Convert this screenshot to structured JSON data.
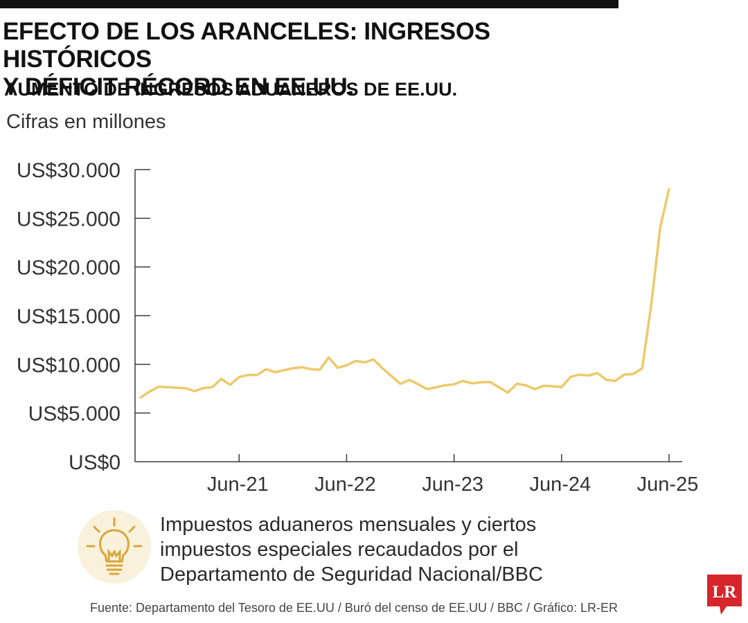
{
  "header": {
    "title_line1": "EFECTO DE LOS ARANCELES: INGRESOS HISTÓRICOS",
    "title_line2": "Y DÉFICIT RÉCORD EN EE.UU.",
    "subtitle": "AUMENTO DE INGRESOS ADUANEROS DE EE.UU.",
    "units": "Cifras en millones"
  },
  "colors": {
    "line": "#ecc96a",
    "axis": "#3a3a3a",
    "icon_bg": "#faf1dc",
    "logo": "#d6262b"
  },
  "chart_data": {
    "type": "line",
    "title": "AUMENTO DE INGRESOS ADUANEROS DE EE.UU.",
    "ylabel": "Cifras en millones",
    "ylim": [
      0,
      30000
    ],
    "xlim": [
      "2020-07",
      "2025-06"
    ],
    "y_ticks": [
      0,
      5000,
      10000,
      15000,
      20000,
      25000,
      30000
    ],
    "y_tick_labels": [
      "US$0",
      "US$5.000",
      "US$10.000",
      "US$15.000",
      "US$20.000",
      "US$25.000",
      "US$30.000"
    ],
    "x_ticks": [
      "2021-06",
      "2022-06",
      "2023-06",
      "2024-06",
      "2025-06"
    ],
    "x_tick_labels": [
      "Jun-21",
      "Jun-22",
      "Jun-23",
      "Jun-24",
      "Jun-25"
    ],
    "grid": false,
    "legend": "none",
    "series": [
      {
        "x": [
          "2020-07",
          "2020-08",
          "2020-09",
          "2020-10",
          "2020-11",
          "2020-12",
          "2021-01",
          "2021-02",
          "2021-03",
          "2021-04",
          "2021-05",
          "2021-06",
          "2021-07",
          "2021-08",
          "2021-09",
          "2021-10",
          "2021-11",
          "2021-12",
          "2022-01",
          "2022-02",
          "2022-03",
          "2022-04",
          "2022-05",
          "2022-06",
          "2022-07",
          "2022-08",
          "2022-09",
          "2022-10",
          "2022-11",
          "2022-12",
          "2023-01",
          "2023-02",
          "2023-03",
          "2023-04",
          "2023-05",
          "2023-06",
          "2023-07",
          "2023-08",
          "2023-09",
          "2023-10",
          "2023-11",
          "2023-12",
          "2024-01",
          "2024-02",
          "2024-03",
          "2024-04",
          "2024-05",
          "2024-06",
          "2024-07",
          "2024-08",
          "2024-09",
          "2024-10",
          "2024-11",
          "2024-12",
          "2025-01",
          "2025-02",
          "2025-03",
          "2025-04",
          "2025-05",
          "2025-06"
        ],
        "values": [
          6600,
          7200,
          7700,
          7650,
          7600,
          7550,
          7250,
          7550,
          7650,
          8500,
          7900,
          8700,
          8900,
          8900,
          9500,
          9200,
          9400,
          9600,
          9700,
          9500,
          9450,
          10700,
          9650,
          9900,
          10350,
          10200,
          10500,
          9600,
          8800,
          8000,
          8400,
          7950,
          7450,
          7650,
          7850,
          7950,
          8300,
          8050,
          8150,
          8200,
          7650,
          7100,
          8000,
          7850,
          7450,
          7800,
          7750,
          7650,
          8700,
          8950,
          8850,
          9100,
          8400,
          8300,
          8950,
          9000,
          9600,
          16000,
          24000,
          28000
        ]
      }
    ]
  },
  "note": {
    "icon": "lightbulb-icon",
    "text_line1": "Impuestos aduaneros mensuales y ciertos",
    "text_line2": "impuestos especiales recaudados por el",
    "text_line3": "Departamento de Seguridad Nacional/BBC"
  },
  "source": "Fuente: Departamento del Tesoro de EE.UU / Buró del censo de EE.UU / BBC / Gráfico: LR-ER",
  "logo": {
    "text": "LR"
  }
}
